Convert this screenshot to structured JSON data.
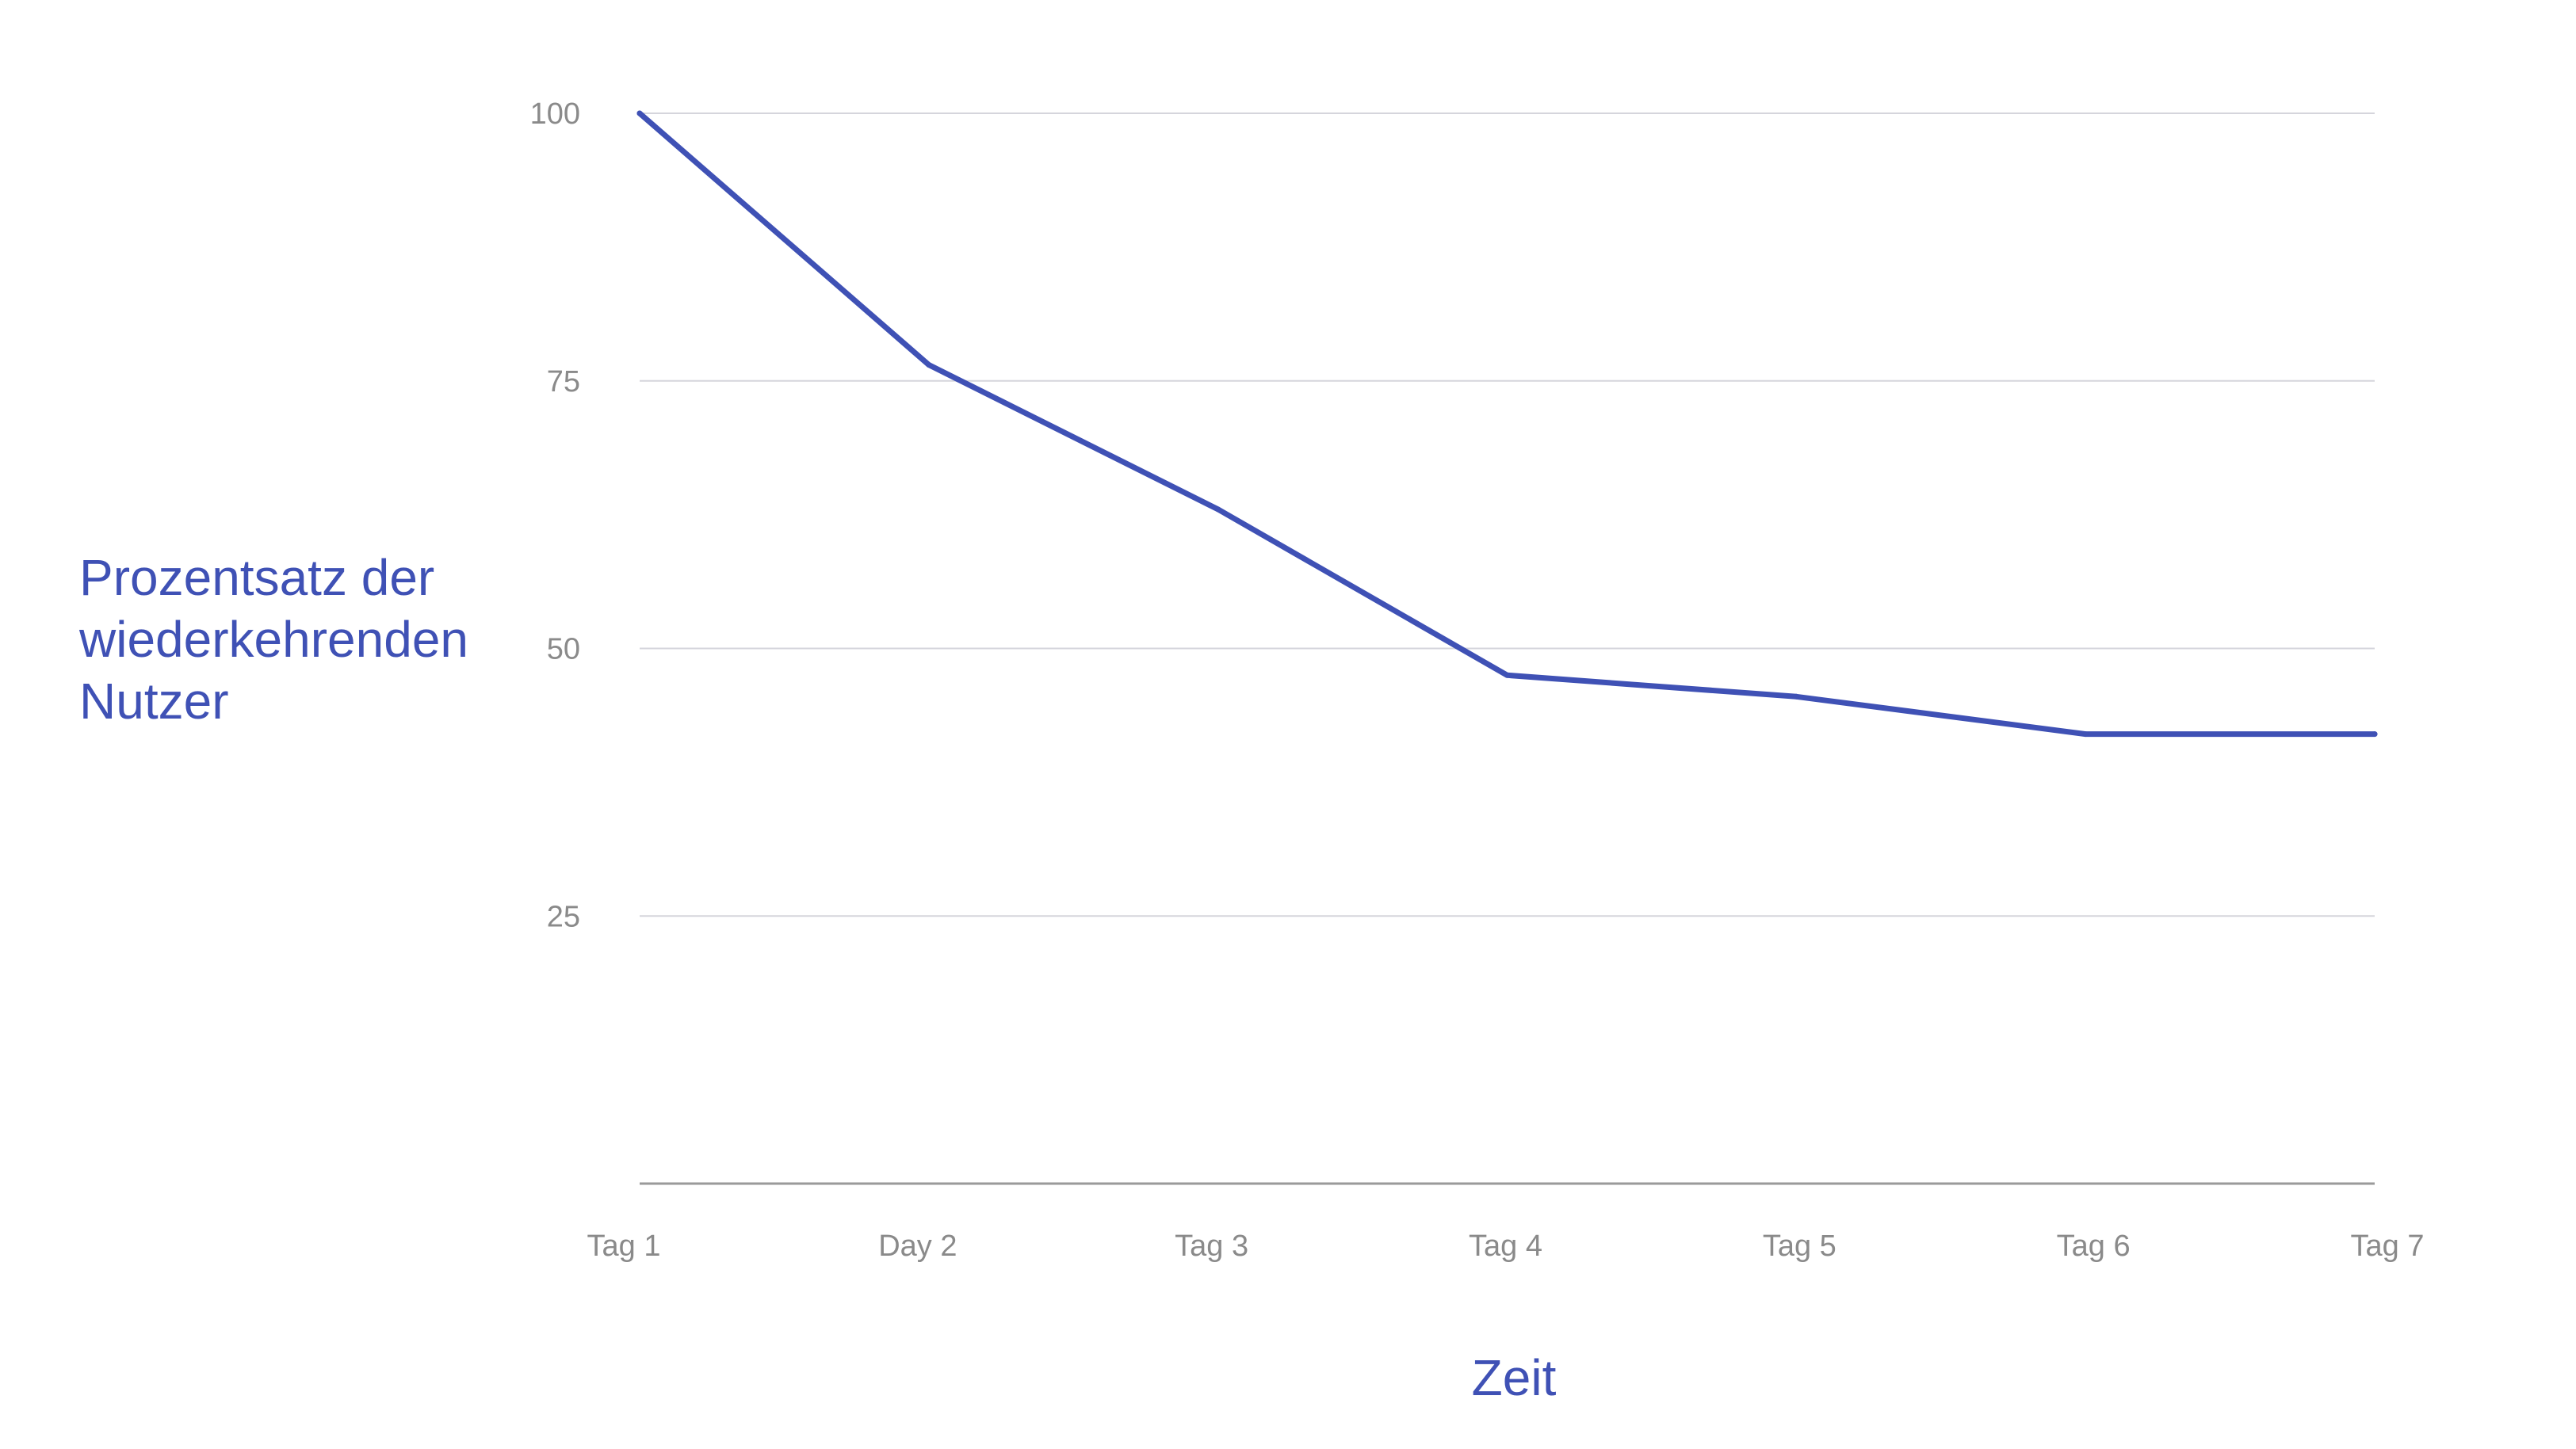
{
  "colors": {
    "line": "#3f51b5",
    "grid": "#d5d5dc",
    "baseline": "#9a9a9a",
    "tick_text": "#8a8a8a",
    "axis_title": "#3f51b5"
  },
  "chart_data": {
    "type": "line",
    "title": "",
    "xlabel": "Zeit",
    "ylabel": "Prozentsatz der wiederkehrenden Nutzer",
    "categories": [
      "Tag 1",
      "Day 2",
      "Tag 3",
      "Tag 4",
      "Tag 5",
      "Tag 6",
      "Tag 7"
    ],
    "series": [
      {
        "values": [
          100,
          76.5,
          63,
          47.5,
          45.5,
          42,
          42
        ]
      }
    ],
    "y_ticks": [
      100,
      75,
      50,
      25
    ],
    "ylim": [
      0,
      100
    ],
    "grid": true,
    "legend": "none"
  }
}
